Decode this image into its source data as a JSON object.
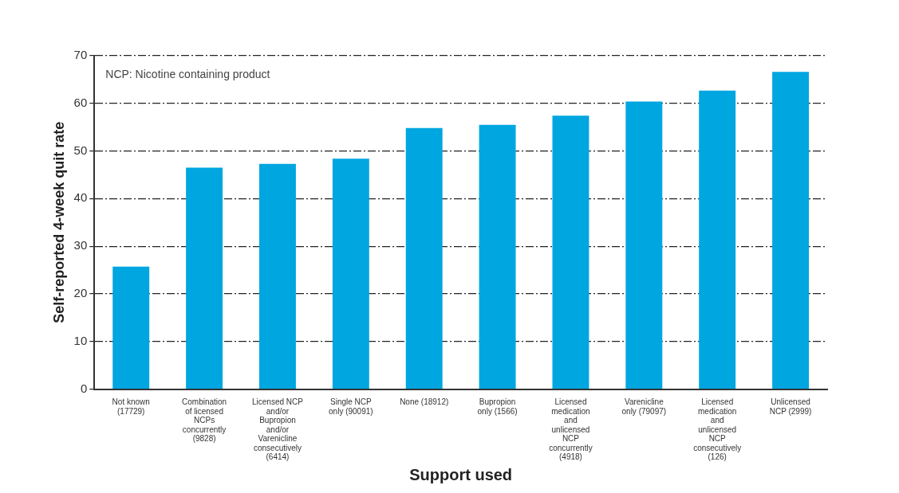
{
  "chart_data": {
    "type": "bar",
    "xlabel": "Support used",
    "ylabel": "Self-reported 4-week quit rate",
    "categories": [
      "Not known (17729)",
      "Combination of licensed NCPs concurrently (9828)",
      "Licensed NCP and/or Bupropion and/or Varenicline consecutively (6414)",
      "Single NCP only (90091)",
      "None (18912)",
      "Bupropion only (1566)",
      "Licensed medication and unlicensed NCP concurrently (4918)",
      "Varenicline only (79097)",
      "Licensed medication and unlicensed NCP consecutively (126)",
      "Unlicensed NCP (2999)"
    ],
    "values": [
      25.7,
      46.5,
      47.3,
      48.4,
      54.8,
      55.5,
      57.4,
      60.4,
      62.7,
      66.6
    ],
    "color": "#00a6e0",
    "ylim": [
      0,
      70
    ],
    "yticks": [
      0,
      10,
      20,
      30,
      40,
      50,
      60,
      70
    ],
    "grid": "y",
    "legend": false,
    "annotations": [
      "NCP: Nicotine containing product"
    ]
  }
}
